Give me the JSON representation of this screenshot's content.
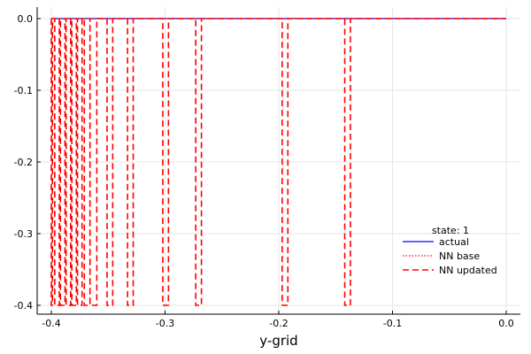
{
  "chart_data": {
    "type": "line",
    "title": "",
    "xlabel": "y-grid",
    "ylabel": "",
    "xlim": [
      -0.4,
      0.0
    ],
    "ylim": [
      -0.4,
      0.0
    ],
    "x_ticks": [
      -0.4,
      -0.3,
      -0.2,
      -0.1,
      0.0
    ],
    "x_tick_labels": [
      "-0.4",
      "-0.3",
      "-0.2",
      "-0.1",
      "0.0"
    ],
    "y_ticks": [
      0.0,
      -0.1,
      -0.2,
      -0.3,
      -0.4
    ],
    "y_tick_labels": [
      "0.0",
      "-0.1",
      "-0.2",
      "-0.3",
      "-0.4"
    ],
    "grid": true,
    "legend": {
      "placement": "bottom-right",
      "title": "state: 1",
      "entries": [
        "actual",
        "NN base",
        "NN updated"
      ]
    },
    "series": [
      {
        "name": "actual",
        "color": "#0000ff",
        "style": "solid",
        "x": [
          -0.4,
          0.0
        ],
        "y": [
          0.0,
          0.0
        ]
      },
      {
        "name": "NN base",
        "color": "#ff0000",
        "style": "dotted",
        "x": [
          -0.4,
          0.0
        ],
        "y": [
          0.0,
          0.0
        ]
      },
      {
        "name": "NN updated",
        "color": "#ff0000",
        "style": "dashed",
        "baseline": 0.0,
        "spikes_to": -0.4,
        "spikes": [
          [
            -0.4,
            -0.399
          ],
          [
            -0.397,
            -0.393
          ],
          [
            -0.392,
            -0.388
          ],
          [
            -0.387,
            -0.383
          ],
          [
            -0.382,
            -0.378
          ],
          [
            -0.377,
            -0.373
          ],
          [
            -0.371,
            -0.366
          ],
          [
            -0.366,
            -0.36
          ],
          [
            -0.351,
            -0.346
          ],
          [
            -0.333,
            -0.328
          ],
          [
            -0.302,
            -0.297
          ],
          [
            -0.273,
            -0.268
          ],
          [
            -0.197,
            -0.192
          ],
          [
            -0.142,
            -0.137
          ]
        ]
      }
    ]
  }
}
